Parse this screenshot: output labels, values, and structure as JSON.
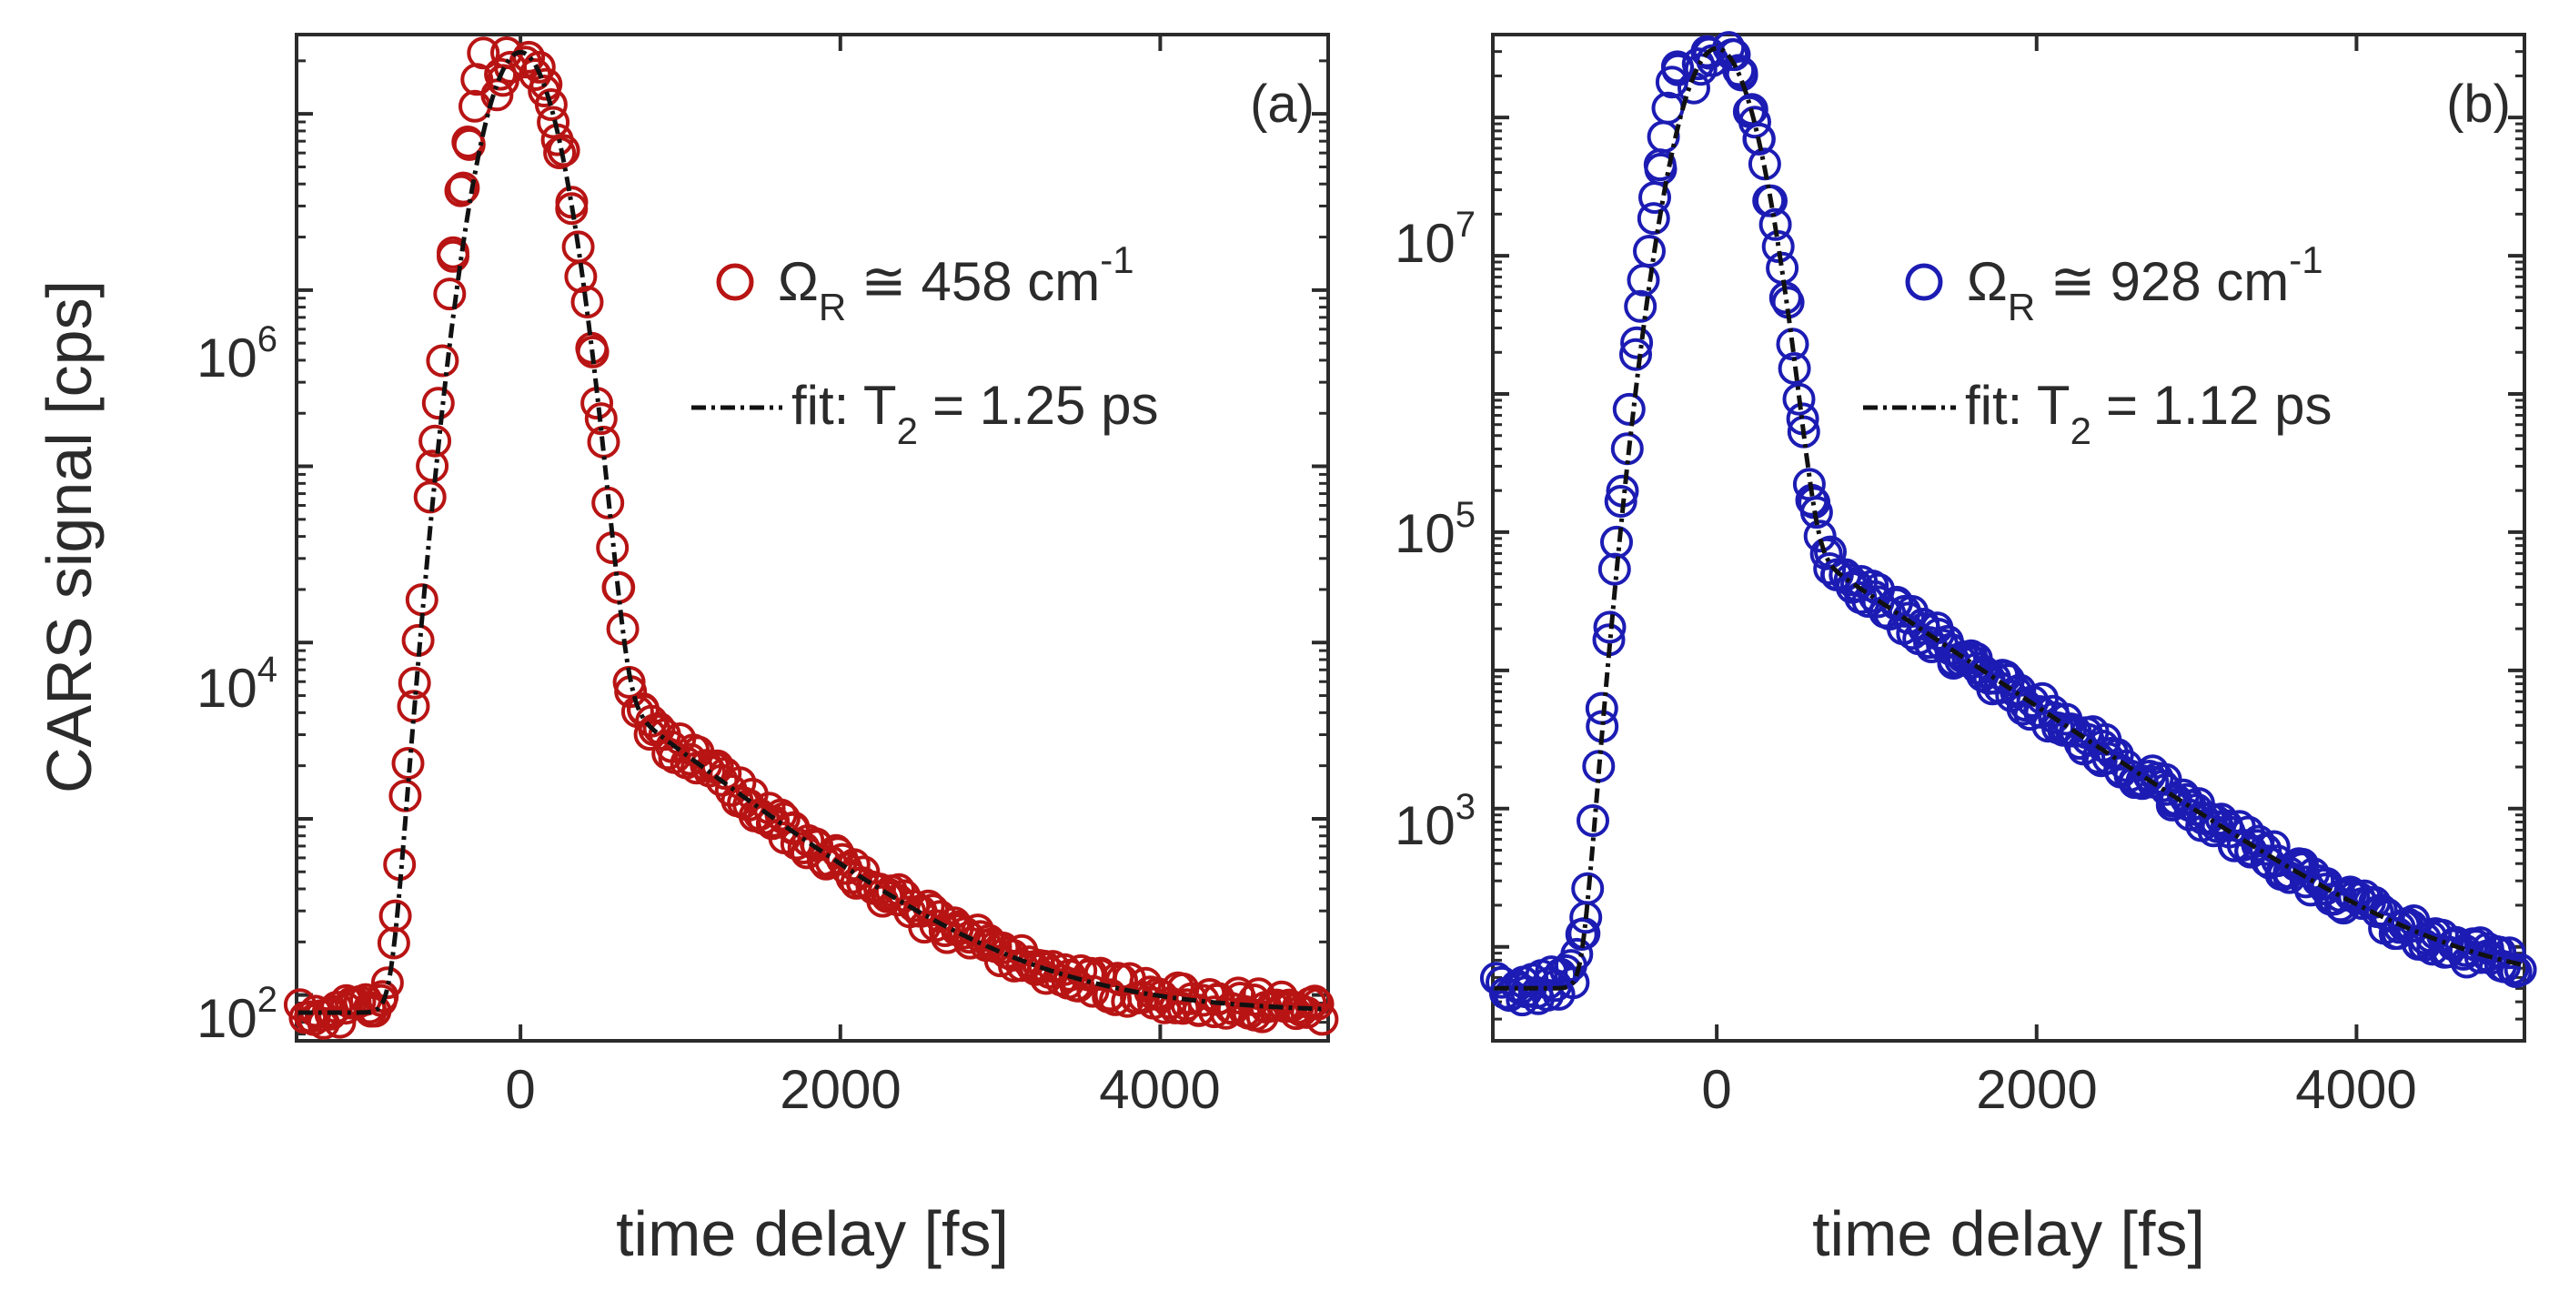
{
  "chart_data": [
    {
      "type": "scatter",
      "panel_label": "(a)",
      "ylabel": "CARS signal [cps]",
      "xlabel": "time delay [fs]",
      "yscale": "log",
      "xlim": [
        -1400,
        5050
      ],
      "ylim_log10": [
        1.74,
        7.45
      ],
      "xticks": [
        0,
        2000,
        4000
      ],
      "xtick_labels": [
        "0",
        "2000",
        "4000"
      ],
      "yticks": [
        2,
        4,
        6
      ],
      "ytick_labels": [
        {
          "base": "10",
          "exp": "2"
        },
        {
          "base": "10",
          "exp": "4"
        },
        {
          "base": "10",
          "exp": "6"
        }
      ],
      "marker_color": "#b81414",
      "fit_color": "#111111",
      "legend": {
        "symbol": "Ω",
        "subscript": "R",
        "relation": "≅",
        "value": "458 cm",
        "exponent": "-1",
        "fit_label": "fit: T",
        "fit_sub": "2",
        "fit_value": "= 1.25 ps"
      },
      "fit": {
        "t_peak": 0,
        "peak_log10": 7.35,
        "sigma": 160,
        "floor_log10": 1.9,
        "coherent_log10": 3.72,
        "t_coherent": 500,
        "t2_fs": 1250
      },
      "scatter_model": {
        "seed": 17,
        "n_points": 260,
        "noise_log10": 0.07
      }
    },
    {
      "type": "scatter",
      "panel_label": "(b)",
      "ylabel": "",
      "xlabel": "time delay [fs]",
      "yscale": "log",
      "xlim": [
        -1400,
        5050
      ],
      "ylim_log10": [
        1.32,
        8.6
      ],
      "xticks": [
        0,
        2000,
        4000
      ],
      "xtick_labels": [
        "0",
        "2000",
        "4000"
      ],
      "yticks": [
        3,
        5,
        7
      ],
      "ytick_labels": [
        {
          "base": "10",
          "exp": "3"
        },
        {
          "base": "10",
          "exp": "5"
        },
        {
          "base": "10",
          "exp": "7"
        }
      ],
      "marker_color": "#1c1cb4",
      "fit_color": "#111111",
      "legend": {
        "symbol": "Ω",
        "subscript": "R",
        "relation": "≅",
        "value": "928 cm",
        "exponent": "-1",
        "fit_label": "fit: T",
        "fit_sub": "2",
        "fit_value": "= 1.12 ps"
      },
      "fit": {
        "t_peak": 0,
        "peak_log10": 8.5,
        "sigma": 150,
        "floor_log10": 1.7,
        "coherent_log10": 4.9,
        "t_coherent": 500,
        "t2_fs": 1120
      },
      "scatter_model": {
        "seed": 29,
        "n_points": 300,
        "noise_log10": 0.09
      }
    }
  ]
}
